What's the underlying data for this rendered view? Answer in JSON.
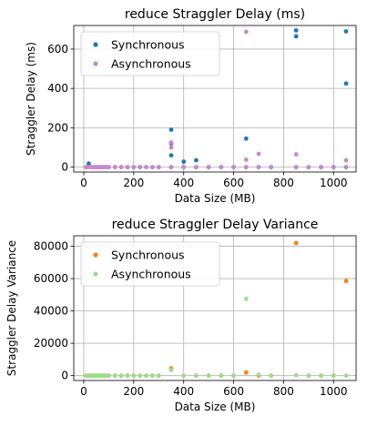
{
  "chart_data": [
    {
      "type": "scatter",
      "title": "reduce Straggler Delay (ms)",
      "xlabel": "Data Size (MB)",
      "ylabel": "Straggler Delay (ms)",
      "xlim": [
        -40,
        1090
      ],
      "ylim": [
        -25,
        720
      ],
      "xticks": [
        0,
        200,
        400,
        600,
        800,
        1000
      ],
      "yticks": [
        0,
        200,
        400,
        600
      ],
      "tick_labels_x": [
        "0",
        "200",
        "400",
        "600",
        "800",
        "1000"
      ],
      "tick_labels_y": [
        "0",
        "200",
        "400",
        "600"
      ],
      "grid": true,
      "legend_position": "top-left",
      "series": [
        {
          "name": "Synchronous",
          "color": "#1f77b4",
          "points": [
            [
              10,
              0
            ],
            [
              20,
              18
            ],
            [
              30,
              0
            ],
            [
              40,
              0
            ],
            [
              50,
              0
            ],
            [
              60,
              0
            ],
            [
              70,
              0
            ],
            [
              80,
              0
            ],
            [
              90,
              0
            ],
            [
              100,
              0
            ],
            [
              125,
              0
            ],
            [
              150,
              0
            ],
            [
              175,
              0
            ],
            [
              200,
              0
            ],
            [
              225,
              0
            ],
            [
              250,
              0
            ],
            [
              275,
              0
            ],
            [
              300,
              0
            ],
            [
              350,
              190
            ],
            [
              350,
              120
            ],
            [
              350,
              60
            ],
            [
              350,
              0
            ],
            [
              400,
              28
            ],
            [
              400,
              0
            ],
            [
              450,
              35
            ],
            [
              450,
              0
            ],
            [
              500,
              0
            ],
            [
              550,
              0
            ],
            [
              600,
              0
            ],
            [
              650,
              145
            ],
            [
              650,
              0
            ],
            [
              700,
              0
            ],
            [
              750,
              0
            ],
            [
              850,
              695
            ],
            [
              850,
              665
            ],
            [
              850,
              0
            ],
            [
              900,
              0
            ],
            [
              950,
              0
            ],
            [
              1000,
              0
            ],
            [
              1050,
              690
            ],
            [
              1050,
              425
            ],
            [
              1050,
              0
            ]
          ]
        },
        {
          "name": "Asynchronous",
          "color": "#c988cc",
          "points": [
            [
              10,
              0
            ],
            [
              20,
              0
            ],
            [
              30,
              0
            ],
            [
              40,
              0
            ],
            [
              50,
              0
            ],
            [
              60,
              0
            ],
            [
              70,
              0
            ],
            [
              80,
              0
            ],
            [
              90,
              0
            ],
            [
              100,
              0
            ],
            [
              125,
              0
            ],
            [
              150,
              0
            ],
            [
              175,
              0
            ],
            [
              200,
              0
            ],
            [
              225,
              0
            ],
            [
              250,
              0
            ],
            [
              275,
              0
            ],
            [
              300,
              0
            ],
            [
              350,
              125
            ],
            [
              350,
              100
            ],
            [
              350,
              0
            ],
            [
              400,
              0
            ],
            [
              450,
              0
            ],
            [
              500,
              0
            ],
            [
              550,
              0
            ],
            [
              600,
              0
            ],
            [
              650,
              688
            ],
            [
              650,
              38
            ],
            [
              650,
              0
            ],
            [
              700,
              68
            ],
            [
              700,
              0
            ],
            [
              750,
              0
            ],
            [
              850,
              65
            ],
            [
              850,
              0
            ],
            [
              900,
              0
            ],
            [
              950,
              0
            ],
            [
              1000,
              0
            ],
            [
              1050,
              35
            ],
            [
              1050,
              0
            ]
          ]
        }
      ]
    },
    {
      "type": "scatter",
      "title": "reduce Straggler Delay Variance",
      "xlabel": "Data Size (MB)",
      "ylabel": "Straggler Delay Variance",
      "xlim": [
        -40,
        1090
      ],
      "ylim": [
        -3000,
        86500
      ],
      "xticks": [
        0,
        200,
        400,
        600,
        800,
        1000
      ],
      "yticks": [
        0,
        20000,
        40000,
        60000,
        80000
      ],
      "tick_labels_x": [
        "0",
        "200",
        "400",
        "600",
        "800",
        "1000"
      ],
      "tick_labels_y": [
        "0",
        "20000",
        "40000",
        "60000",
        "80000"
      ],
      "grid": true,
      "legend_position": "top-left",
      "series": [
        {
          "name": "Synchronous",
          "color": "#ff7f0e",
          "points": [
            [
              10,
              0
            ],
            [
              20,
              100
            ],
            [
              30,
              0
            ],
            [
              40,
              0
            ],
            [
              50,
              0
            ],
            [
              60,
              0
            ],
            [
              70,
              0
            ],
            [
              80,
              0
            ],
            [
              90,
              0
            ],
            [
              100,
              0
            ],
            [
              125,
              0
            ],
            [
              150,
              0
            ],
            [
              175,
              0
            ],
            [
              200,
              0
            ],
            [
              225,
              0
            ],
            [
              250,
              0
            ],
            [
              275,
              0
            ],
            [
              300,
              0
            ],
            [
              350,
              4500
            ],
            [
              400,
              0
            ],
            [
              450,
              0
            ],
            [
              500,
              0
            ],
            [
              550,
              0
            ],
            [
              600,
              0
            ],
            [
              650,
              2000
            ],
            [
              700,
              0
            ],
            [
              750,
              0
            ],
            [
              850,
              82000
            ],
            [
              900,
              0
            ],
            [
              950,
              0
            ],
            [
              1000,
              0
            ],
            [
              1050,
              58500
            ]
          ]
        },
        {
          "name": "Asynchronous",
          "color": "#98df8a",
          "points": [
            [
              10,
              0
            ],
            [
              20,
              0
            ],
            [
              30,
              0
            ],
            [
              40,
              0
            ],
            [
              50,
              0
            ],
            [
              60,
              0
            ],
            [
              70,
              0
            ],
            [
              80,
              0
            ],
            [
              90,
              0
            ],
            [
              100,
              0
            ],
            [
              125,
              0
            ],
            [
              150,
              0
            ],
            [
              175,
              0
            ],
            [
              200,
              0
            ],
            [
              225,
              0
            ],
            [
              250,
              0
            ],
            [
              275,
              0
            ],
            [
              300,
              0
            ],
            [
              350,
              3500
            ],
            [
              400,
              0
            ],
            [
              450,
              0
            ],
            [
              500,
              0
            ],
            [
              550,
              0
            ],
            [
              600,
              0
            ],
            [
              650,
              47500
            ],
            [
              700,
              500
            ],
            [
              750,
              0
            ],
            [
              850,
              300
            ],
            [
              900,
              0
            ],
            [
              950,
              0
            ],
            [
              1000,
              0
            ],
            [
              1050,
              0
            ]
          ]
        }
      ]
    }
  ]
}
